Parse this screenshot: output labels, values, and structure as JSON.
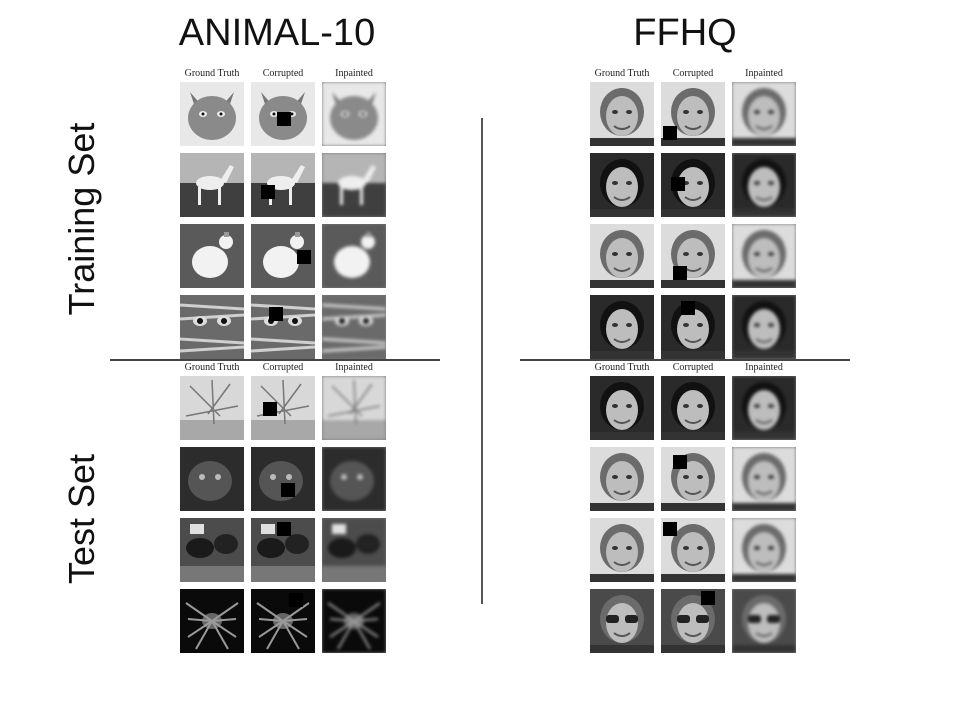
{
  "titles": {
    "left": "ANIMAL-10",
    "right": "FFHQ"
  },
  "side_labels": {
    "training": "Training Set",
    "test": "Test Set"
  },
  "column_labels": [
    "Ground Truth",
    "Corrupted",
    "Inpainted"
  ],
  "panels": [
    {
      "id": "animal-train",
      "rows": [
        "cat",
        "horse",
        "rooster",
        "tabby-cat"
      ]
    },
    {
      "id": "animal-test",
      "rows": [
        "spider-web",
        "dark-cat",
        "cattle",
        "tarantula"
      ]
    },
    {
      "id": "ffhq-train",
      "rows": [
        "woman-flower",
        "young-man",
        "child",
        "smiling-woman"
      ]
    },
    {
      "id": "ffhq-test",
      "rows": [
        "long-hair-woman",
        "cosplay-girl",
        "blonde-girl",
        "sunglasses-woman"
      ]
    }
  ]
}
